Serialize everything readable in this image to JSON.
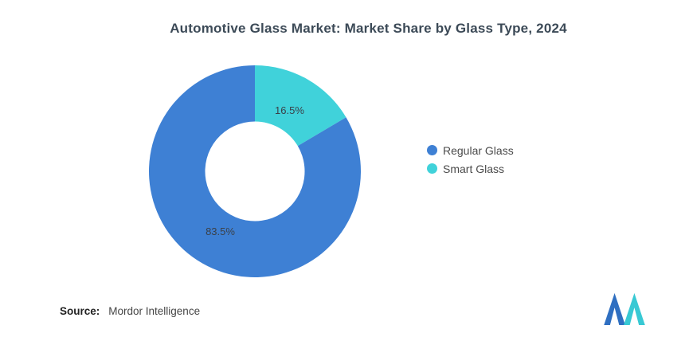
{
  "chart_data": {
    "type": "donut",
    "title": "Automotive Glass Market: Market Share by Glass Type, 2024",
    "slices": [
      {
        "label": "Smart Glass",
        "value": 16.5,
        "pct_label": "16.5%",
        "color": "#40d2da"
      },
      {
        "label": "Regular Glass",
        "value": 83.5,
        "pct_label": "83.5%",
        "color": "#3e80d4"
      }
    ],
    "legend": [
      {
        "label": "Regular Glass",
        "color": "#3e80d4"
      },
      {
        "label": "Smart Glass",
        "color": "#40d2da"
      }
    ],
    "start_angle": "top",
    "direction": "clockwise",
    "inner_radius_ratio": 0.47,
    "label_radius_ratio": 0.66,
    "legend_position": "right",
    "label_color": "#3b4149",
    "background": "#ffffff"
  },
  "source": {
    "label": "Source:",
    "value": "Mordor Intelligence"
  },
  "branding": {
    "logo_name": "mordor-intelligence-logo",
    "logo_blue": "#2f6fc1",
    "logo_teal": "#38c9d4"
  }
}
